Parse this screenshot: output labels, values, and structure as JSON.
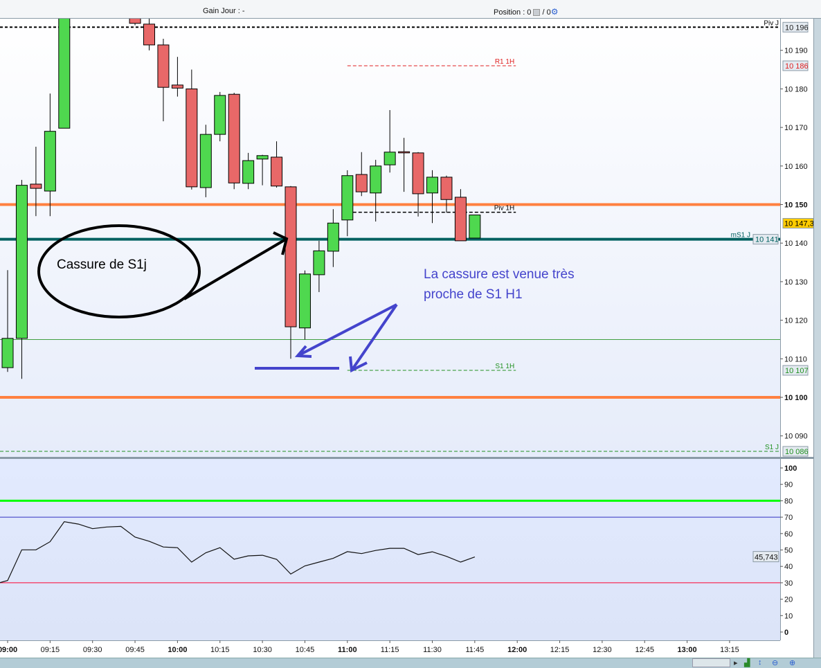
{
  "header": {
    "gain_label": "Gain Jour : -",
    "position_label": "Position : 0",
    "position_sep": "/ 0",
    "settings_icon": "gear-icon",
    "position_icon": "calculator-icon"
  },
  "chart_data": [
    {
      "type": "candlestick",
      "ylim": [
        10085,
        10198
      ],
      "grid": false,
      "x_ticks": [
        "09:00",
        "09:15",
        "09:30",
        "09:45",
        "10:00",
        "10:15",
        "10:30",
        "10:45",
        "11:00",
        "11:15",
        "11:30",
        "11:45",
        "12:00",
        "12:15",
        "12:30",
        "12:45",
        "13:00",
        "13:15"
      ],
      "y_ticks": [
        {
          "v": 10190,
          "l": "10 190"
        },
        {
          "v": 10180,
          "l": "10 180"
        },
        {
          "v": 10170,
          "l": "10 170"
        },
        {
          "v": 10160,
          "l": "10 160"
        },
        {
          "v": 10150,
          "l": "10 150",
          "bold": true
        },
        {
          "v": 10140,
          "l": "10 140"
        },
        {
          "v": 10130,
          "l": "10 130"
        },
        {
          "v": 10120,
          "l": "10 120"
        },
        {
          "v": 10110,
          "l": "10 110"
        },
        {
          "v": 10100,
          "l": "10 100",
          "bold": true
        },
        {
          "v": 10090,
          "l": "10 090"
        }
      ],
      "candles": [
        {
          "t": "09:00",
          "o": 10107.7,
          "h": 10133,
          "l": 10106.6,
          "c": 10115.3
        },
        {
          "t": "09:05",
          "o": 10115.3,
          "h": 10156.4,
          "l": 10104.8,
          "c": 10155
        },
        {
          "t": "09:10",
          "o": 10155.3,
          "h": 10165,
          "l": 10147,
          "c": 10154.2
        },
        {
          "t": "09:15",
          "o": 10153.5,
          "h": 10178.8,
          "l": 10147,
          "c": 10169
        },
        {
          "t": "09:20",
          "o": 10169.8,
          "h": 10210,
          "l": 10169.8,
          "c": 10205
        },
        {
          "t": "09:45",
          "o": 10199.5,
          "h": 10200,
          "l": 10196.5,
          "c": 10197
        },
        {
          "t": "09:50",
          "o": 10196.8,
          "h": 10200,
          "l": 10190,
          "c": 10191.4
        },
        {
          "t": "09:55",
          "o": 10191.4,
          "h": 10193,
          "l": 10171.6,
          "c": 10180.4
        },
        {
          "t": "10:00",
          "o": 10181,
          "h": 10188.3,
          "l": 10178,
          "c": 10180.2
        },
        {
          "t": "10:05",
          "o": 10180,
          "h": 10185,
          "l": 10153.9,
          "c": 10154.6
        },
        {
          "t": "10:10",
          "o": 10154.4,
          "h": 10170.7,
          "l": 10151.9,
          "c": 10168.2
        },
        {
          "t": "10:15",
          "o": 10168.2,
          "h": 10179.2,
          "l": 10166.4,
          "c": 10178.3
        },
        {
          "t": "10:20",
          "o": 10178.6,
          "h": 10179,
          "l": 10154,
          "c": 10155.6
        },
        {
          "t": "10:25",
          "o": 10155.5,
          "h": 10163.4,
          "l": 10154,
          "c": 10161.4
        },
        {
          "t": "10:30",
          "o": 10161.8,
          "h": 10162.9,
          "l": 10155,
          "c": 10162.7
        },
        {
          "t": "10:35",
          "o": 10162.3,
          "h": 10166.4,
          "l": 10154.4,
          "c": 10154.8
        },
        {
          "t": "10:40",
          "o": 10154.6,
          "h": 10154.8,
          "l": 10110,
          "c": 10118.3
        },
        {
          "t": "10:45",
          "o": 10118,
          "h": 10132.9,
          "l": 10115,
          "c": 10132
        },
        {
          "t": "10:50",
          "o": 10131.8,
          "h": 10140.6,
          "l": 10127.3,
          "c": 10138
        },
        {
          "t": "10:55",
          "o": 10137.9,
          "h": 10148.8,
          "l": 10133.8,
          "c": 10145.2
        },
        {
          "t": "11:00",
          "o": 10146,
          "h": 10158.9,
          "l": 10141.8,
          "c": 10157.5
        },
        {
          "t": "11:05",
          "o": 10157.8,
          "h": 10163.6,
          "l": 10152.2,
          "c": 10153.3
        },
        {
          "t": "11:10",
          "o": 10153,
          "h": 10161.6,
          "l": 10145.6,
          "c": 10160
        },
        {
          "t": "11:15",
          "o": 10160.3,
          "h": 10174.5,
          "l": 10158.3,
          "c": 10163.6
        },
        {
          "t": "11:20",
          "o": 10163.7,
          "h": 10167.3,
          "l": 10153.3,
          "c": 10163.4
        },
        {
          "t": "11:25",
          "o": 10163.4,
          "h": 10163.6,
          "l": 10146.9,
          "c": 10152.8
        },
        {
          "t": "11:30",
          "o": 10153,
          "h": 10158.9,
          "l": 10145.2,
          "c": 10157.1
        },
        {
          "t": "11:35",
          "o": 10157.1,
          "h": 10157.5,
          "l": 10147.9,
          "c": 10151.3
        },
        {
          "t": "11:40",
          "o": 10151.9,
          "h": 10154,
          "l": 10140.6,
          "c": 10140.6
        },
        {
          "t": "11:45",
          "o": 10141.3,
          "h": 10147.3,
          "l": 10141.3,
          "c": 10147.3
        }
      ],
      "levels": [
        {
          "label": "Piv J",
          "value": 10196,
          "tag": "10 196",
          "color": "#000000",
          "style": "dotted",
          "width": 2,
          "from": "full"
        },
        {
          "label": "R1 1H",
          "value": 10186,
          "tag": "10 186",
          "color": "#e02020",
          "style": "dashed",
          "width": 1,
          "from": "11:00",
          "to": "12:00"
        },
        {
          "label": "",
          "value": 10150,
          "color": "#ff8040",
          "style": "solid",
          "width": 4,
          "from": "full"
        },
        {
          "label": "Piv 1H",
          "value": 10148,
          "color": "#000000",
          "style": "dashed",
          "width": 1.5,
          "from": "11:00",
          "to": "12:00"
        },
        {
          "label": "mS1 J",
          "value": 10141,
          "tag": "10 141",
          "color": "#006060",
          "style": "solid",
          "width": 4,
          "from": "full"
        },
        {
          "label": "",
          "value": 10115,
          "color": "#40a040",
          "style": "solid",
          "width": 1,
          "from": "full"
        },
        {
          "label": "S1 1H",
          "value": 10107,
          "tag": "10 107",
          "color": "#209020",
          "style": "dashed",
          "width": 1,
          "from": "11:00",
          "to": "12:00"
        },
        {
          "label": "",
          "value": 10100,
          "color": "#ff8040",
          "style": "solid",
          "width": 4,
          "from": "full"
        },
        {
          "label": "S1 J",
          "value": 10086,
          "tag": "10 086",
          "color": "#209020",
          "style": "dashed",
          "width": 1,
          "from": "full"
        }
      ],
      "last_price": {
        "value": 10147.3,
        "tag": "10 147,3",
        "color": "#ffcc00"
      },
      "colors": {
        "up": "#4fd84f",
        "down": "#e86868"
      },
      "annotations": {
        "left_text": "Cassure de S1j",
        "right_text": [
          "La cassure est venue très",
          "proche de S1 H1"
        ],
        "left_color": "#000000",
        "right_color": "#4444cc"
      }
    },
    {
      "type": "line",
      "ylim": [
        0,
        100
      ],
      "y_ticks": [
        {
          "v": 100,
          "l": "100",
          "bold": true
        },
        {
          "v": 90,
          "l": "90"
        },
        {
          "v": 80,
          "l": "80"
        },
        {
          "v": 70,
          "l": "70"
        },
        {
          "v": 60,
          "l": "60"
        },
        {
          "v": 50,
          "l": "50"
        },
        {
          "v": 40,
          "l": "40"
        },
        {
          "v": 30,
          "l": "30"
        },
        {
          "v": 20,
          "l": "20"
        },
        {
          "v": 10,
          "l": "10"
        },
        {
          "v": 0,
          "l": "0",
          "bold": true
        }
      ],
      "x": [
        "08:55",
        "09:00",
        "09:05",
        "09:10",
        "09:15",
        "09:20",
        "09:25",
        "09:30",
        "09:35",
        "09:40",
        "09:45",
        "09:50",
        "09:55",
        "10:00",
        "10:05",
        "10:10",
        "10:15",
        "10:20",
        "10:25",
        "10:30",
        "10:35",
        "10:40",
        "10:45",
        "10:50",
        "10:55",
        "11:00",
        "11:05",
        "11:10",
        "11:15",
        "11:20",
        "11:25",
        "11:30",
        "11:35",
        "11:40",
        "11:45"
      ],
      "values": [
        29,
        31.4,
        50.1,
        50.1,
        55,
        67.2,
        65.8,
        63,
        64,
        64.4,
        57.9,
        55.3,
        51.8,
        51.4,
        42.6,
        48.3,
        51.4,
        44.4,
        46.4,
        46.8,
        44.3,
        35.3,
        40.3,
        42.6,
        44.9,
        49,
        47.8,
        49.7,
        51,
        51,
        47.2,
        48.9,
        46.1,
        42.6,
        45.743
      ],
      "last_tag": "45,743",
      "levels": [
        {
          "value": 80,
          "color": "#00ff00",
          "width": 3
        },
        {
          "value": 70,
          "color": "#3030c0",
          "width": 1
        },
        {
          "value": 30,
          "color": "#ff0030",
          "width": 1
        }
      ]
    }
  ]
}
